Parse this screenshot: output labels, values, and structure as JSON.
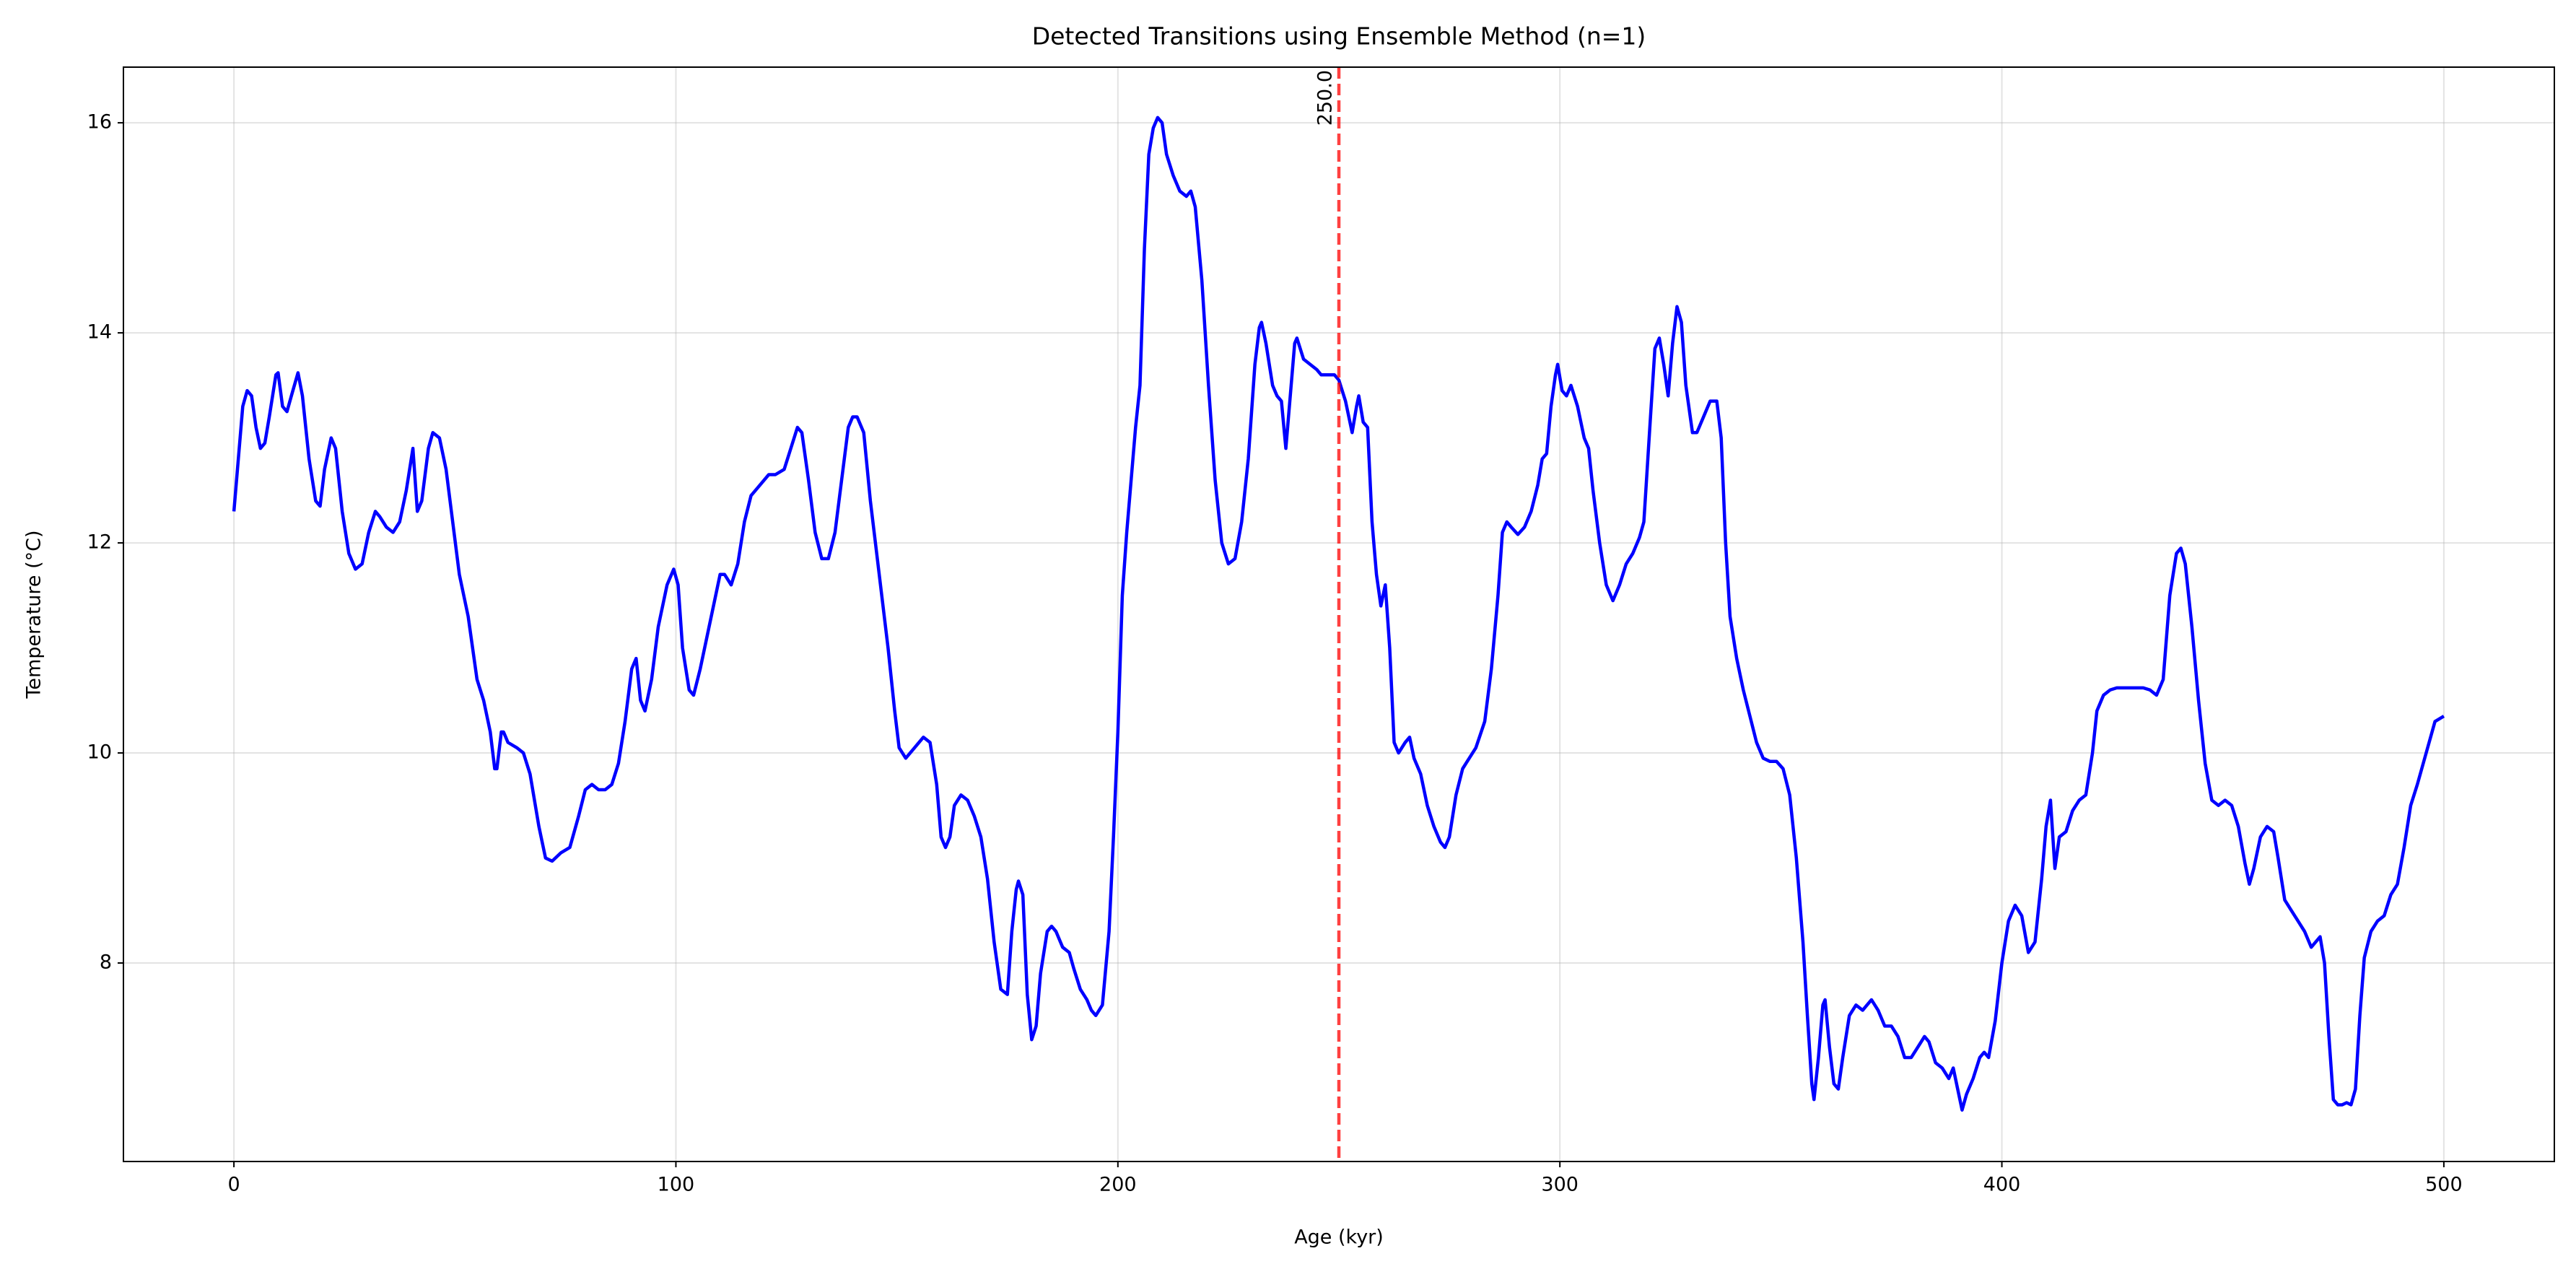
{
  "chart_data": {
    "type": "line",
    "title": "Detected Transitions using Ensemble Method (n=1)",
    "x_label": "Age (kyr)",
    "y_label": "Temperature (°C)",
    "xlim": [
      -25,
      525
    ],
    "ylim": [
      6.11,
      16.53
    ],
    "xticks": [
      0,
      100,
      200,
      300,
      400,
      500
    ],
    "yticks": [
      8,
      10,
      12,
      14,
      16
    ],
    "grid": true,
    "color": "#0000ff",
    "vlines": [
      {
        "value": 250,
        "label": "250.0",
        "color": "#ff0000"
      }
    ],
    "x": [
      0,
      2,
      3,
      4,
      5,
      6,
      7,
      8,
      9.5,
      10,
      11,
      12,
      13,
      14.5,
      15.5,
      17,
      18.5,
      19.5,
      20.5,
      22,
      23,
      24.5,
      26,
      27.5,
      29,
      30.5,
      32,
      33,
      34.5,
      36,
      37.5,
      39,
      40.5,
      41.5,
      42.5,
      44,
      45,
      46.5,
      48,
      49.5,
      51,
      53,
      55,
      56.5,
      58,
      59,
      59.5,
      60.5,
      61,
      62,
      64,
      65.5,
      67,
      69,
      70.5,
      72,
      74,
      76,
      78,
      79.5,
      81,
      82.5,
      84,
      85.5,
      87,
      88.5,
      90,
      91,
      92,
      93,
      94.5,
      96,
      98,
      99.5,
      100.5,
      101.5,
      103,
      104,
      105.5,
      107,
      108.5,
      110,
      111,
      112.5,
      114,
      115.5,
      117,
      119,
      121,
      122.5,
      124.5,
      126,
      127.5,
      128.5,
      130,
      131.5,
      133,
      134.5,
      136,
      137.5,
      139,
      140,
      141,
      142.5,
      144,
      146,
      148,
      149.5,
      150.5,
      152,
      154,
      156,
      157.5,
      159,
      160,
      161,
      162,
      163,
      164.5,
      166,
      167.5,
      169,
      170.5,
      172,
      173.5,
      175,
      176,
      177,
      177.5,
      178.5,
      179.5,
      180.5,
      181.5,
      182.5,
      184,
      185,
      186,
      187.5,
      189,
      190,
      191.5,
      193,
      194,
      195,
      196.5,
      198,
      199,
      200,
      201,
      202,
      203,
      204,
      205,
      206,
      207,
      208,
      209,
      210,
      211,
      212.5,
      214,
      215.5,
      216.5,
      217.5,
      219,
      220.5,
      222,
      223.5,
      225,
      226.5,
      228,
      229.5,
      231,
      232,
      232.5,
      233.5,
      235,
      236,
      237,
      238,
      239,
      240,
      240.5,
      242,
      243.5,
      245,
      246,
      247.5,
      249,
      250,
      251.5,
      253,
      254,
      254.5,
      255.5,
      256.5,
      257.5,
      258.5,
      259.5,
      260.5,
      261.5,
      262.5,
      263.5,
      265,
      266,
      267,
      268.5,
      270,
      271.5,
      273,
      274,
      275,
      276.5,
      278,
      279.5,
      281,
      283,
      284.5,
      286,
      287,
      288,
      289,
      290.5,
      292,
      293.5,
      295,
      296,
      297,
      298,
      299,
      299.5,
      300.5,
      301.5,
      302.5,
      304,
      305.5,
      306.5,
      307.5,
      309,
      310.5,
      312,
      313.5,
      315,
      316.5,
      318,
      319,
      320.5,
      321.5,
      322.5,
      323.5,
      324.5,
      325.5,
      326.5,
      327.5,
      328.5,
      330,
      331,
      332.5,
      334,
      335.5,
      336.5,
      337.5,
      338.5,
      340,
      341.5,
      343,
      344.5,
      346,
      347.5,
      349,
      350.5,
      352,
      353.5,
      355,
      356,
      357,
      357.5,
      358.5,
      359.5,
      360,
      361,
      362,
      363,
      364,
      365.5,
      367,
      368.5,
      369.5,
      370.5,
      372,
      373.5,
      375,
      376.5,
      378,
      379.5,
      381,
      382.5,
      383.5,
      385,
      386.5,
      388,
      389,
      390,
      391,
      392,
      393.5,
      395,
      396,
      397,
      398.5,
      400,
      401.5,
      403,
      404.5,
      406,
      407.5,
      409,
      410,
      411,
      412,
      413,
      414.5,
      416,
      417.5,
      419,
      420.5,
      421.5,
      423,
      424.5,
      426,
      428,
      430,
      432,
      433.5,
      435,
      436.5,
      438,
      439.5,
      440.5,
      441.5,
      443,
      444.5,
      446,
      447.5,
      449,
      450.5,
      452,
      453.5,
      455,
      456,
      457,
      458.5,
      460,
      461.5,
      462.5,
      464,
      465.5,
      467,
      468.5,
      470,
      471,
      472,
      473,
      474,
      475,
      476,
      477,
      478,
      479,
      480,
      481,
      482,
      483.5,
      485,
      486.5,
      488,
      489.5,
      491,
      492.5,
      494,
      496,
      498,
      500
    ],
    "values": [
      12.3,
      13.3,
      13.45,
      13.4,
      13.1,
      12.9,
      12.95,
      13.2,
      13.6,
      13.62,
      13.3,
      13.25,
      13.4,
      13.62,
      13.4,
      12.8,
      12.4,
      12.35,
      12.7,
      13.0,
      12.9,
      12.3,
      11.9,
      11.75,
      11.8,
      12.1,
      12.3,
      12.25,
      12.15,
      12.1,
      12.2,
      12.5,
      12.9,
      12.3,
      12.4,
      12.9,
      13.05,
      13.0,
      12.7,
      12.2,
      11.7,
      11.3,
      10.7,
      10.5,
      10.2,
      9.85,
      9.85,
      10.2,
      10.2,
      10.1,
      10.05,
      10.0,
      9.8,
      9.3,
      9.0,
      8.97,
      9.05,
      9.1,
      9.4,
      9.65,
      9.7,
      9.65,
      9.65,
      9.7,
      9.9,
      10.3,
      10.8,
      10.9,
      10.5,
      10.4,
      10.7,
      11.2,
      11.6,
      11.75,
      11.6,
      11.0,
      10.6,
      10.55,
      10.8,
      11.1,
      11.4,
      11.7,
      11.7,
      11.6,
      11.8,
      12.2,
      12.45,
      12.55,
      12.65,
      12.65,
      12.7,
      12.9,
      13.1,
      13.05,
      12.6,
      12.1,
      11.85,
      11.85,
      12.1,
      12.6,
      13.1,
      13.2,
      13.2,
      13.05,
      12.4,
      11.7,
      11.0,
      10.4,
      10.05,
      9.95,
      10.05,
      10.15,
      10.1,
      9.7,
      9.2,
      9.1,
      9.2,
      9.5,
      9.6,
      9.55,
      9.4,
      9.2,
      8.8,
      8.2,
      7.75,
      7.7,
      8.3,
      8.7,
      8.78,
      8.65,
      7.7,
      7.27,
      7.4,
      7.9,
      8.3,
      8.35,
      8.3,
      8.15,
      8.1,
      7.95,
      7.75,
      7.65,
      7.55,
      7.5,
      7.6,
      8.3,
      9.2,
      10.2,
      11.5,
      12.1,
      12.6,
      13.1,
      13.5,
      14.8,
      15.7,
      15.95,
      16.05,
      16.0,
      15.7,
      15.5,
      15.35,
      15.3,
      15.35,
      15.2,
      14.5,
      13.5,
      12.6,
      12.0,
      11.8,
      11.85,
      12.2,
      12.8,
      13.7,
      14.05,
      14.1,
      13.9,
      13.5,
      13.4,
      13.35,
      12.9,
      13.4,
      13.9,
      13.95,
      13.75,
      13.7,
      13.65,
      13.6,
      13.6,
      13.6,
      13.55,
      13.35,
      13.05,
      13.3,
      13.4,
      13.15,
      13.1,
      12.2,
      11.7,
      11.4,
      11.6,
      11.0,
      10.1,
      10.0,
      10.1,
      10.15,
      9.95,
      9.8,
      9.5,
      9.3,
      9.15,
      9.1,
      9.2,
      9.6,
      9.85,
      9.95,
      10.05,
      10.3,
      10.8,
      11.5,
      12.1,
      12.2,
      12.15,
      12.08,
      12.15,
      12.3,
      12.55,
      12.8,
      12.85,
      13.3,
      13.6,
      13.7,
      13.45,
      13.4,
      13.5,
      13.3,
      13.0,
      12.9,
      12.5,
      12.0,
      11.6,
      11.45,
      11.6,
      11.8,
      11.9,
      12.05,
      12.2,
      13.2,
      13.85,
      13.95,
      13.7,
      13.4,
      13.9,
      14.25,
      14.1,
      13.5,
      13.05,
      13.05,
      13.2,
      13.35,
      13.35,
      13.0,
      12.0,
      11.3,
      10.9,
      10.6,
      10.35,
      10.1,
      9.95,
      9.92,
      9.92,
      9.85,
      9.6,
      9.0,
      8.2,
      7.5,
      6.85,
      6.7,
      7.1,
      7.6,
      7.65,
      7.2,
      6.85,
      6.8,
      7.1,
      7.5,
      7.6,
      7.55,
      7.6,
      7.65,
      7.55,
      7.4,
      7.4,
      7.3,
      7.1,
      7.1,
      7.2,
      7.3,
      7.25,
      7.05,
      7.0,
      6.9,
      7.0,
      6.8,
      6.6,
      6.75,
      6.9,
      7.1,
      7.15,
      7.1,
      7.45,
      8.0,
      8.4,
      8.55,
      8.45,
      8.1,
      8.2,
      8.8,
      9.3,
      9.55,
      8.9,
      9.2,
      9.25,
      9.45,
      9.55,
      9.6,
      10.0,
      10.4,
      10.55,
      10.6,
      10.62,
      10.62,
      10.62,
      10.62,
      10.6,
      10.55,
      10.7,
      11.5,
      11.9,
      11.95,
      11.8,
      11.2,
      10.5,
      9.9,
      9.55,
      9.5,
      9.55,
      9.5,
      9.3,
      8.95,
      8.75,
      8.9,
      9.2,
      9.3,
      9.25,
      9.0,
      8.6,
      8.5,
      8.4,
      8.3,
      8.15,
      8.2,
      8.25,
      8.0,
      7.3,
      6.7,
      6.65,
      6.65,
      6.67,
      6.65,
      6.8,
      7.5,
      8.05,
      8.3,
      8.4,
      8.45,
      8.65,
      8.75,
      9.1,
      9.5,
      9.7,
      10.0,
      10.3,
      10.35
    ]
  }
}
